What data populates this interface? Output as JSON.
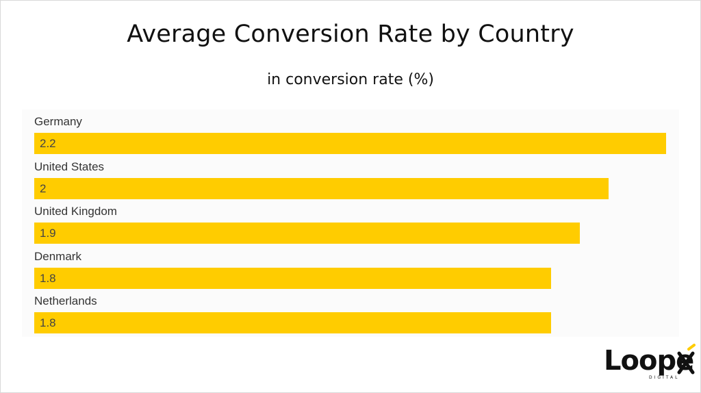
{
  "chart_data": {
    "type": "bar",
    "orientation": "horizontal",
    "title": "Average Conversion Rate by Country",
    "subtitle": "in conversion rate (%)",
    "categories": [
      "Germany",
      "United States",
      "United Kingdom",
      "Denmark",
      "Netherlands"
    ],
    "values": [
      2.2,
      2,
      1.9,
      1.8,
      1.8
    ],
    "value_labels": [
      "2.2",
      "2",
      "1.9",
      "1.8",
      "1.8"
    ],
    "xlim": [
      0,
      2.2
    ],
    "grid": false,
    "legend": "none",
    "bar_color": "#ffcc00"
  },
  "branding": {
    "logo_text": "Loopex",
    "logo_subtext": "DIGITAL",
    "accent_color": "#ffcc00"
  }
}
